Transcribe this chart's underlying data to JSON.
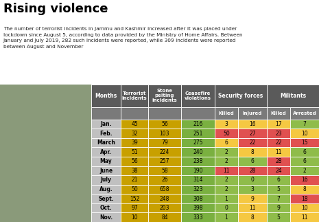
{
  "title": "Rising violence",
  "subtitle": "The number of terrorist incidents in Jammu and Kashmir increased after it was placed under\nlockdown since August 5, according to data provided by the Ministry of Home Affairs. Between\nJanuary and July 2019, 282 such incidents were reported, while 309 incidents were reported\nbetween August and November",
  "months": [
    "Jan.",
    "Feb.",
    "March",
    "Apr.",
    "May",
    "June",
    "July",
    "Aug.",
    "Sept.",
    "Oct.",
    "Nov."
  ],
  "terrorist_incidents": [
    45,
    32,
    39,
    51,
    56,
    38,
    21,
    50,
    152,
    97,
    10
  ],
  "stone_pelting": [
    56,
    103,
    79,
    224,
    257,
    58,
    26,
    658,
    248,
    203,
    84
  ],
  "ceasefire_violations": [
    216,
    251,
    275,
    240,
    238,
    190,
    314,
    323,
    308,
    398,
    333
  ],
  "sf_killed": [
    3,
    50,
    6,
    2,
    2,
    11,
    2,
    2,
    1,
    0,
    1
  ],
  "sf_injured": [
    16,
    27,
    22,
    8,
    6,
    28,
    0,
    3,
    9,
    11,
    8
  ],
  "mil_killed": [
    17,
    23,
    22,
    11,
    28,
    24,
    6,
    5,
    7,
    9,
    5
  ],
  "mil_arrested": [
    7,
    10,
    15,
    6,
    6,
    2,
    16,
    8,
    18,
    10,
    11
  ],
  "header_bg": "#5a5a5a",
  "header_text": "#ffffff",
  "subheader_bg": "#7a7a7a",
  "col_terrorist_bg": "#c8a000",
  "col_stone_bg": "#c8a000",
  "col_ceasefire_bg": "#7ab040",
  "month_col_bg": "#c0c0c0",
  "photo_bg": "#8a9a7a",
  "bg_color": "#ffffff",
  "color_red": "#e05050",
  "color_yellow": "#f5c842",
  "color_green": "#8fbc4a"
}
